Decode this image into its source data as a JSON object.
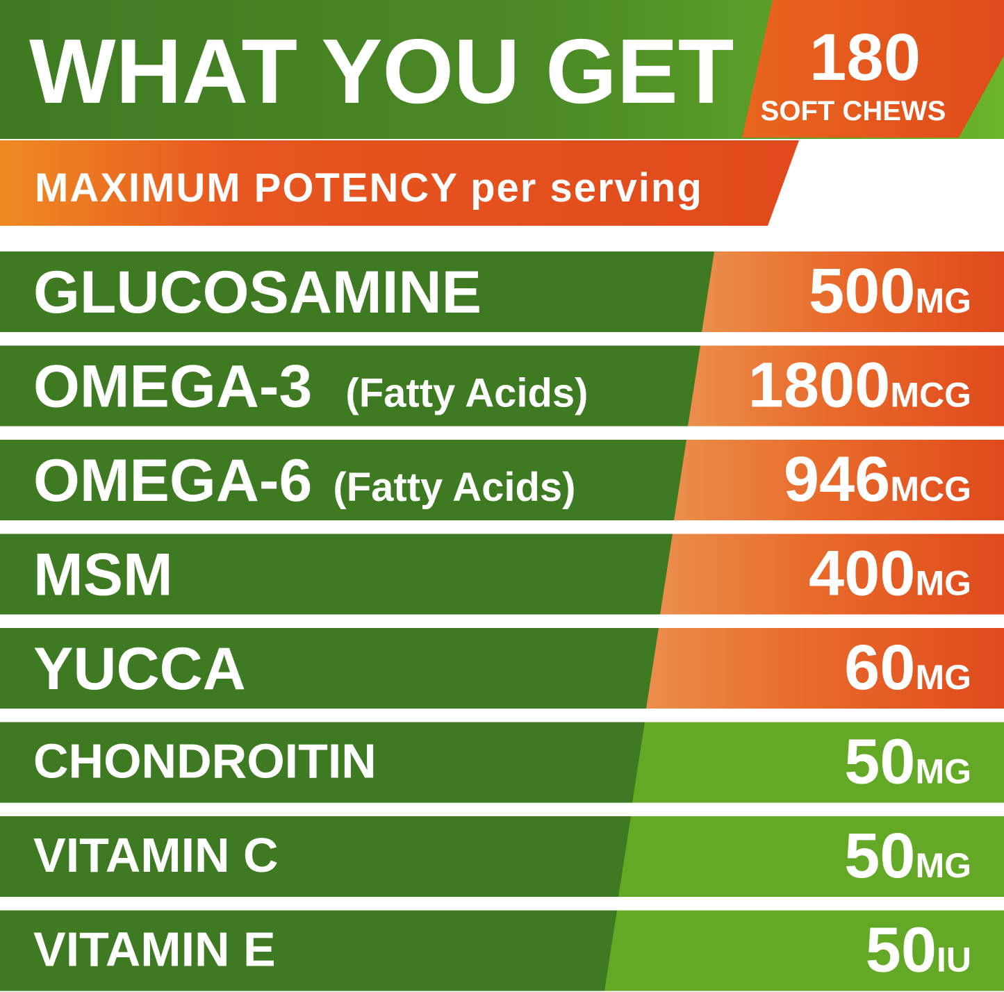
{
  "header": {
    "title": "WHAT YOU GET",
    "badge": {
      "count": 180,
      "label": "SOFT CHEWS"
    },
    "subtitle": {
      "strong": "MAXIMUM POTENCY",
      "rest": "per serving"
    }
  },
  "rows": [
    {
      "name": "GLUCOSAMINE",
      "amount": 500,
      "unit": "MG"
    },
    {
      "name": "OMEGA-3",
      "note": "(Fatty Acids)",
      "amount": 1800,
      "unit": "MCG"
    },
    {
      "name": "OMEGA-6",
      "note": "(Fatty Acids)",
      "amount": 946,
      "unit": "MCG"
    },
    {
      "name": "MSM",
      "amount": 400,
      "unit": "MG"
    },
    {
      "name": "YUCCA",
      "amount": 60,
      "unit": "MG"
    },
    {
      "name": "CHONDROITIN",
      "amount": 50,
      "unit": "MG"
    },
    {
      "name": "VITAMIN C",
      "amount": 50,
      "unit": "MG"
    },
    {
      "name": "VITAMIN E",
      "amount": 50,
      "unit": "IU"
    }
  ]
}
